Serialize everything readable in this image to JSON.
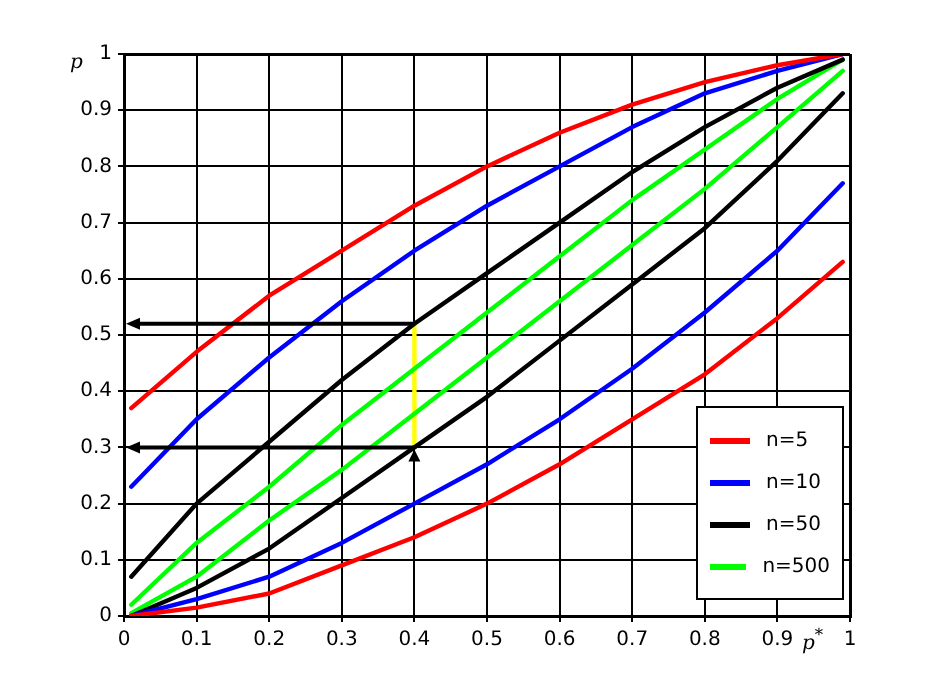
{
  "chart_data": {
    "type": "line",
    "xlabel": "p$^{*}$",
    "ylabel": "p",
    "x": [
      0.01,
      0.1,
      0.2,
      0.3,
      0.4,
      0.5,
      0.6,
      0.7,
      0.8,
      0.9,
      0.99
    ],
    "xlim": [
      0,
      1
    ],
    "xticks": [
      0,
      0.1,
      0.2,
      0.3,
      0.4,
      0.5,
      0.6,
      0.7,
      0.8,
      0.9,
      1
    ],
    "ylim": [
      0,
      1
    ],
    "yticks": [
      0,
      0.1,
      0.2,
      0.3,
      0.4,
      0.5,
      0.6,
      0.7,
      0.8,
      0.9,
      1
    ],
    "grid": true,
    "legend": "bottom right",
    "marker": "none",
    "line_style": "solid",
    "series": [
      {
        "name": "n=5",
        "color": "#ff0000",
        "values": [
          0.37,
          0.47,
          0.57,
          0.65,
          0.73,
          0.8,
          0.86,
          0.91,
          0.95,
          0.98,
          1.0
        ]
      },
      {
        "color": "#ff0000",
        "values": [
          0.0,
          0.015,
          0.04,
          0.09,
          0.14,
          0.2,
          0.27,
          0.35,
          0.43,
          0.53,
          0.63
        ]
      },
      {
        "name": "n=10",
        "color": "#0000ff",
        "values": [
          0.23,
          0.35,
          0.46,
          0.56,
          0.65,
          0.73,
          0.8,
          0.87,
          0.93,
          0.97,
          1.0
        ]
      },
      {
        "color": "#0000ff",
        "values": [
          0.0,
          0.03,
          0.07,
          0.13,
          0.2,
          0.27,
          0.35,
          0.44,
          0.54,
          0.65,
          0.77
        ]
      },
      {
        "name": "n=50",
        "color": "#000000",
        "values": [
          0.07,
          0.2,
          0.31,
          0.42,
          0.52,
          0.61,
          0.7,
          0.79,
          0.87,
          0.94,
          0.99
        ]
      },
      {
        "color": "#000000",
        "values": [
          0.0,
          0.05,
          0.12,
          0.21,
          0.3,
          0.39,
          0.49,
          0.59,
          0.69,
          0.81,
          0.93
        ]
      },
      {
        "name": "n=500",
        "color": "#00ff00",
        "values": [
          0.02,
          0.13,
          0.23,
          0.34,
          0.44,
          0.54,
          0.64,
          0.74,
          0.83,
          0.92,
          0.99
        ]
      },
      {
        "color": "#00ff00",
        "values": [
          0.005,
          0.07,
          0.17,
          0.26,
          0.36,
          0.46,
          0.56,
          0.66,
          0.76,
          0.87,
          0.97
        ]
      },
      {
        "color": "#ffff00",
        "x": [
          0.4,
          0.4
        ],
        "values": [
          0.3,
          0.52
        ]
      }
    ]
  }
}
